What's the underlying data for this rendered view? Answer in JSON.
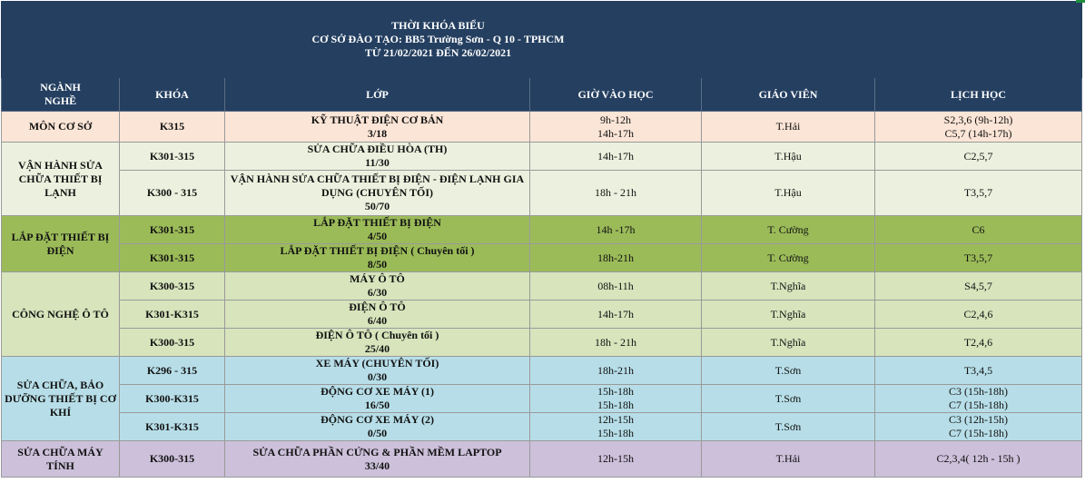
{
  "header": {
    "title_line1": "THỜI KHÓA BIỂU",
    "title_line2": "CƠ SỞ ĐÀO TẠO: BB5 Trường Sơn - Q 10 - TPHCM",
    "title_line3": "TỪ 21/02/2021 ĐẾN 26/02/2021"
  },
  "columns": {
    "nganh": "NGÀNH\nNGHỀ",
    "khoa": "KHÓA",
    "lop": "LỚP",
    "gio": "GIỜ VÀO HỌC",
    "giaovien": "GIÁO VIÊN",
    "lich": "LỊCH HỌC"
  },
  "groups": [
    {
      "name": "MÔN CƠ SỞ",
      "color": "#fbe5d6"
    },
    {
      "name": "VẬN HÀNH SỬA CHỮA THIẾT BỊ LẠNH",
      "color": "#ebf1de"
    },
    {
      "name": "LẮP ĐẶT THIẾT BỊ ĐIỆN",
      "color": "#9bbb59"
    },
    {
      "name": "CÔNG NGHỆ Ô TÔ",
      "color": "#d7e4bc"
    },
    {
      "name": "SỬA CHỮA, BẢO DƯỠNG THIẾT BỊ CƠ KHÍ",
      "color": "#b7dee8"
    },
    {
      "name": "SỬA CHỮA MÁY TÍNH",
      "color": "#ccc0da"
    }
  ],
  "rows": [
    {
      "khoa": "K315",
      "lop_name": "KỸ THUẬT ĐIỆN CƠ BẢN",
      "lop_count": "3/18",
      "gio": "9h-12h\n14h-17h",
      "gv": "T.Hải",
      "lich": "S2,3,6 (9h-12h)\nC5,7 (14h-17h)"
    },
    {
      "khoa": "K301-315",
      "lop_name": "SỬA CHỮA ĐIỀU HÒA (TH)",
      "lop_count": "11/30",
      "gio": "14h-17h",
      "gv": "T.Hậu",
      "lich": "C2,5,7"
    },
    {
      "khoa": "K300 - 315",
      "lop_name": "VẬN HÀNH SỬA CHỮA THIẾT BỊ ĐIỆN - ĐIỆN LẠNH GIA DỤNG (CHUYÊN TỐI)",
      "lop_count": "50/70",
      "gio": "18h - 21h",
      "gv": "T.Hậu",
      "lich": "T3,5,7"
    },
    {
      "khoa": "K301-315",
      "lop_name": "LẮP ĐẶT THIẾT BỊ ĐIỆN",
      "lop_count": "4/50",
      "gio": "14h -17h",
      "gv": "T. Cường",
      "lich": "C6"
    },
    {
      "khoa": "K301-315",
      "lop_name": "LẮP ĐẶT THIẾT BỊ ĐIỆN ( Chuyên tối )",
      "lop_count": "8/50",
      "gio": "18h-21h",
      "gv": "T. Cường",
      "lich": "T3,5,7"
    },
    {
      "khoa": "K300-315",
      "lop_name": "MÁY Ô TÔ",
      "lop_count": "6/30",
      "gio": "08h-11h",
      "gv": "T.Nghĩa",
      "lich": "S4,5,7"
    },
    {
      "khoa": "K301-K315",
      "lop_name": "ĐIỆN Ô TÔ",
      "lop_count": "6/40",
      "gio": "14h-17h",
      "gv": "T.Nghĩa",
      "lich": "C2,4,6"
    },
    {
      "khoa": "K300-315",
      "lop_name": "ĐIỆN Ô TÔ ( Chuyên tối )",
      "lop_count": "25/40",
      "gio": "18h - 21h",
      "gv": "T.Nghĩa",
      "lich": "T2,4,6"
    },
    {
      "khoa": "K296 - 315",
      "lop_name": "XE MÁY (CHUYÊN TỐI)",
      "lop_count": "0/30",
      "gio": "18h-21h",
      "gv": "T.Sơn",
      "lich": "T3,4,5"
    },
    {
      "khoa": "K300-K315",
      "lop_name": "ĐỘNG CƠ XE MÁY (1)",
      "lop_count": "16/50",
      "gio": "15h-18h\n15h-18h",
      "gv": "T.Sơn",
      "lich": "C3 (15h-18h)\nC7 (15h-18h)"
    },
    {
      "khoa": "K301-K315",
      "lop_name": "ĐỘNG CƠ XE MÁY (2)",
      "lop_count": "0/50",
      "gio": "12h-15h\n15h-18h",
      "gv": "T.Sơn",
      "lich": "C3 (12h-15h)\nC7 (15h-18h)"
    },
    {
      "khoa": "K300-315",
      "lop_name": "SỬA CHỮA PHẦN CỨNG & PHẦN MỀM LAPTOP",
      "lop_count": "33/40",
      "gio": "12h-15h",
      "gv": "T.Hải",
      "lich": "C2,3,4( 12h - 15h )"
    }
  ]
}
